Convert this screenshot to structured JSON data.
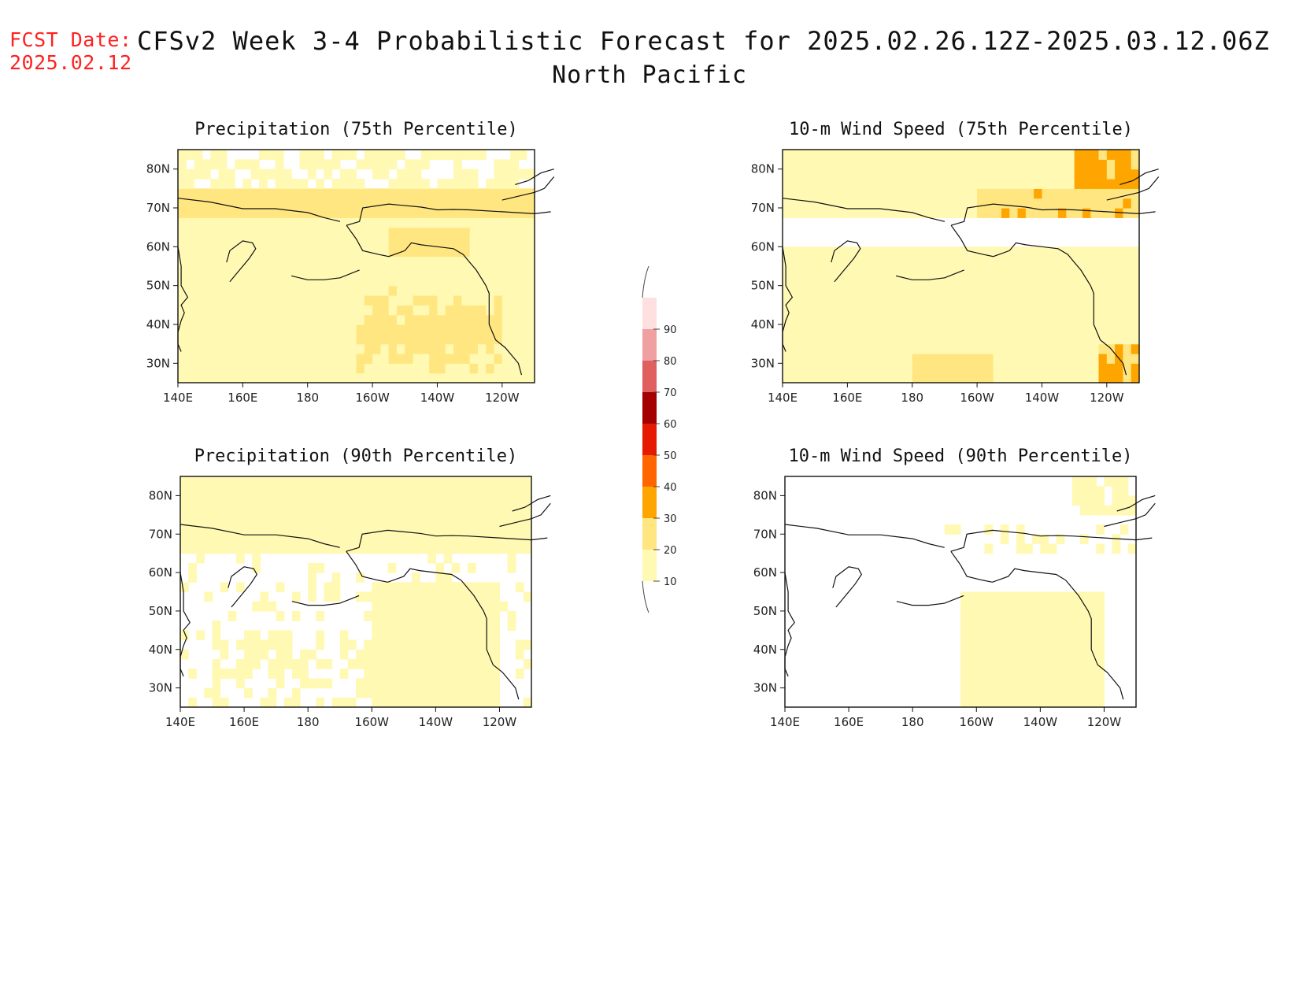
{
  "header": {
    "fcst_label": "FCST Date:",
    "fcst_date": "2025.02.12",
    "title": "CFSv2 Week 3-4 Probabilistic Forecast for 2025.02.26.12Z-2025.03.12.06Z",
    "region": "North Pacific"
  },
  "colorbar": {
    "levels": [
      "10",
      "20",
      "30",
      "40",
      "50",
      "60",
      "70",
      "80",
      "90"
    ],
    "colors": [
      "#fff9b3",
      "#ffe680",
      "#ffa500",
      "#ff6600",
      "#e61a00",
      "#a50000",
      "#e06060",
      "#f0a0a0",
      "#ffe0e0"
    ]
  },
  "axes": {
    "lon_labels": [
      "140E",
      "160E",
      "180",
      "160W",
      "140W",
      "120W"
    ],
    "lat_labels": [
      "80N",
      "70N",
      "60N",
      "50N",
      "40N",
      "30N"
    ]
  },
  "chart_data": [
    {
      "type": "heatmap",
      "title": "Precipitation (75th Percentile)",
      "field": "precip75",
      "xlim": [
        "140E",
        "110W"
      ],
      "ylim": [
        "25N",
        "85N"
      ]
    },
    {
      "type": "heatmap",
      "title": "10-m Wind Speed (75th Percentile)",
      "field": "wind75",
      "xlim": [
        "140E",
        "110W"
      ],
      "ylim": [
        "25N",
        "85N"
      ]
    },
    {
      "type": "heatmap",
      "title": "Precipitation (90th Percentile)",
      "field": "precip90",
      "xlim": [
        "140E",
        "110W"
      ],
      "ylim": [
        "25N",
        "85N"
      ]
    },
    {
      "type": "heatmap",
      "title": "10-m Wind Speed (90th Percentile)",
      "field": "wind90",
      "xlim": [
        "140E",
        "110W"
      ],
      "ylim": [
        "25N",
        "85N"
      ]
    }
  ]
}
